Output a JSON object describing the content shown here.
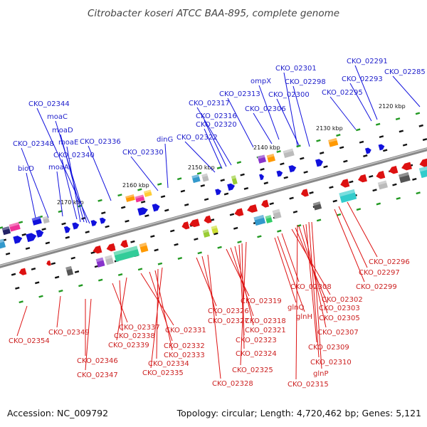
{
  "title": "Citrobacter koseri ATCC BAA-895, complete genome",
  "footer": {
    "accession": "Accession: NC_009792",
    "stats": "Topology: circular; Length: 4,720,462 bp; Genes: 5,121"
  },
  "colors": {
    "forward": "#1111dd",
    "reverse": "#dd1111",
    "backbone": "#888888",
    "feature_tick": "#229922"
  },
  "ticks": [
    "2120 kbp",
    "2130 kbp",
    "2140 kbp",
    "2150 kbp",
    "2160 kbp",
    "2170 kbp"
  ],
  "forward_labels": [
    "bioD",
    "CKO_02348",
    "moaA",
    "CKO_02340",
    "moaE",
    "moaD",
    "moaC",
    "CKO_02344",
    "CKO_02336",
    "CKO_02330",
    "dinG",
    "CKO_02322",
    "CKO_02320",
    "CKO_02316",
    "CKO_02317",
    "CKO_02313",
    "CKO_02306",
    "ompX",
    "CKO_02301",
    "CKO_02300",
    "CKO_02298",
    "CKO_02295",
    "CKO_02293",
    "CKO_02291",
    "CKO_02285"
  ],
  "reverse_labels": [
    "CKO_02354",
    "CKO_02349",
    "CKO_02346",
    "CKO_02347",
    "CKO_02337",
    "CKO_02338",
    "CKO_02339",
    "CKO_02331",
    "CKO_02332",
    "CKO_02333",
    "CKO_02334",
    "CKO_02335",
    "CKO_02326",
    "CKO_02327",
    "CKO_02328",
    "CKO_02319",
    "CKO_02318",
    "CKO_02321",
    "CKO_02323",
    "CKO_02324",
    "CKO_02325",
    "glnH",
    "glnQ",
    "CKO_02308",
    "CKO_02302",
    "CKO_02303",
    "CKO_02305",
    "CKO_02307",
    "CKO_02309",
    "CKO_02310",
    "glnP",
    "CKO_02315",
    "CKO_02299",
    "CKO_02297",
    "CKO_02296"
  ]
}
